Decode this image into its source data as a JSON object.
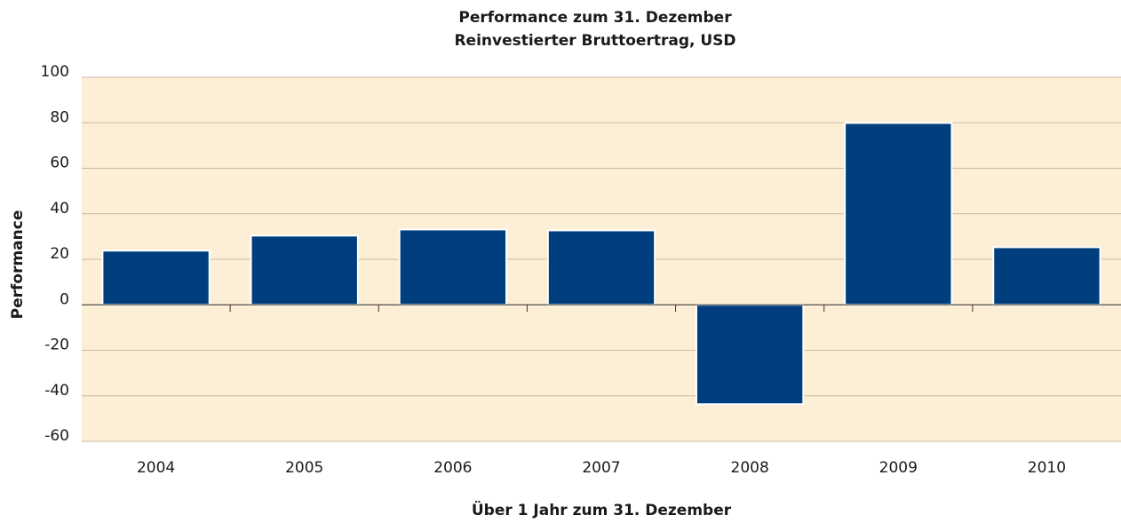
{
  "chart_data": {
    "type": "bar",
    "title": "Performance zum 31. Dezember",
    "subtitle": "Reinvestierter Bruttoertrag, USD",
    "x_label": "Über 1 Jahr zum 31. Dezember",
    "y_label": "Performance",
    "categories": [
      "2004",
      "2005",
      "2006",
      "2007",
      "2008",
      "2009",
      "2010"
    ],
    "values": [
      23.8,
      30.4,
      33.1,
      32.7,
      -43.7,
      79.9,
      25.3
    ],
    "color": "#003e7e",
    "background": "#fdefd6",
    "ylim": [
      -60,
      100
    ],
    "yticks": [
      -60,
      -40,
      -20,
      0,
      20,
      40,
      60,
      80,
      100
    ],
    "grid": true
  }
}
